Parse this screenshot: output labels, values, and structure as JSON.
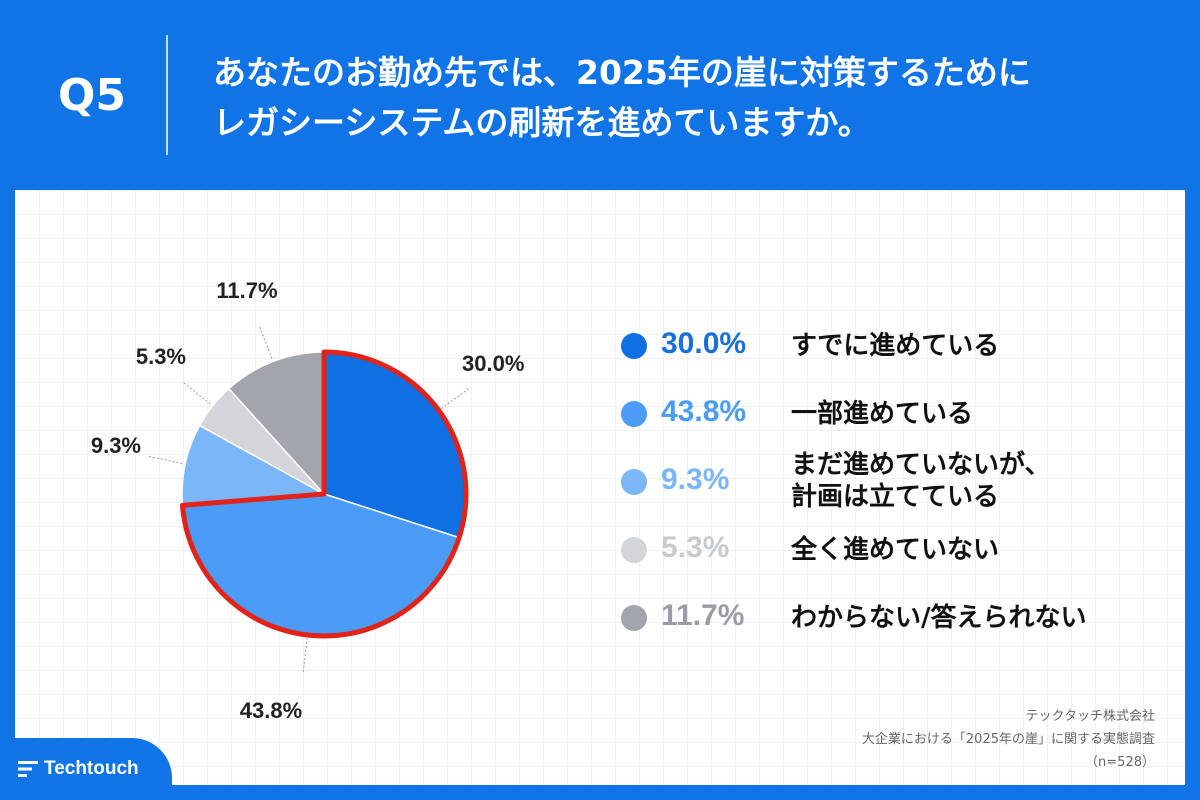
{
  "header": {
    "question_number": "Q5",
    "question_line1": "あなたのお勤め先では、2025年の崖に対策するために",
    "question_line2": "レガシーシステムの刷新を進めていますか。"
  },
  "chart_data": {
    "type": "pie",
    "title": "あなたのお勤め先では、2025年の崖に対策するためにレガシーシステムの刷新を進めていますか。",
    "start": "12 o'clock, clockwise",
    "highlight": "first two slices outlined in red",
    "highlight_color": "#e2231a",
    "slices": [
      {
        "label": "すでに進めている",
        "value": 30.0,
        "pct_text": "30.0%",
        "color": "#0f6fe3",
        "pct_color": "#1a6fdb",
        "label_line2": ""
      },
      {
        "label": "一部進めている",
        "value": 43.8,
        "pct_text": "43.8%",
        "color": "#4a9cf6",
        "pct_color": "#4a9cf6",
        "label_line2": ""
      },
      {
        "label": "まだ進めていないが、",
        "value": 9.3,
        "pct_text": "9.3%",
        "color": "#7ab6f8",
        "pct_color": "#7ab6f8",
        "label_line2": "計画は立てている"
      },
      {
        "label": "全く進めていない",
        "value": 5.3,
        "pct_text": "5.3%",
        "color": "#d3d5d9",
        "pct_color": "#c8cacd",
        "label_line2": ""
      },
      {
        "label": "わからない/答えられない",
        "value": 11.7,
        "pct_text": "11.7%",
        "color": "#a2a5ab",
        "pct_color": "#9a9da3",
        "label_line2": ""
      }
    ]
  },
  "footer": {
    "company": "テックタッチ株式会社",
    "survey": "大企業における「2025年の崖」に関する実態調査",
    "sample": "（n=528）"
  },
  "brand": {
    "name": "Techtouch",
    "primary_color": "#1174e6"
  }
}
